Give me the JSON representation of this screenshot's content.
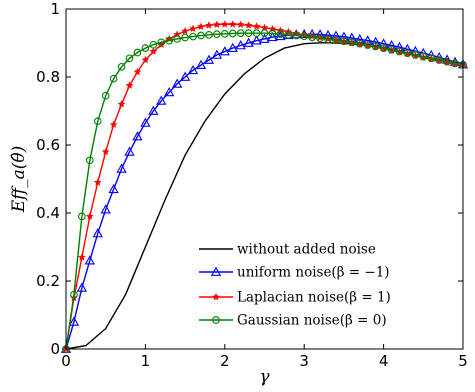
{
  "chart_data": {
    "type": "line",
    "title": "",
    "xlabel": "γ",
    "ylabel": "Eff_a(θ̂)",
    "xlim": [
      0,
      5
    ],
    "ylim": [
      0,
      1
    ],
    "x_ticks": [
      "0",
      "1",
      "2",
      "3",
      "4",
      "5"
    ],
    "y_ticks": [
      "0",
      "0.2",
      "0.4",
      "0.6",
      "0.8",
      "1"
    ],
    "grid": false,
    "legend_position": "bottom-right",
    "series": [
      {
        "name": "without added noise",
        "color": "#000000",
        "marker": "none",
        "x": [
          0,
          0.25,
          0.5,
          0.75,
          1.0,
          1.25,
          1.5,
          1.75,
          2.0,
          2.25,
          2.5,
          2.75,
          3.0,
          3.25,
          3.5,
          3.75,
          4.0,
          4.25,
          4.5,
          4.75,
          5.0
        ],
        "y": [
          0,
          0.01,
          0.06,
          0.16,
          0.3,
          0.44,
          0.57,
          0.67,
          0.75,
          0.81,
          0.855,
          0.885,
          0.898,
          0.901,
          0.899,
          0.894,
          0.885,
          0.873,
          0.86,
          0.85,
          0.84
        ]
      },
      {
        "name": "uniform noise(β = −1)",
        "color": "#0000ff",
        "marker": "triangle",
        "x": [
          0,
          0.1,
          0.2,
          0.3,
          0.4,
          0.5,
          0.6,
          0.7,
          0.8,
          0.9,
          1.0,
          1.1,
          1.2,
          1.3,
          1.4,
          1.5,
          1.6,
          1.7,
          1.8,
          1.9,
          2.0,
          2.1,
          2.2,
          2.3,
          2.4,
          2.5,
          2.6,
          2.7,
          2.8,
          2.9,
          3.0,
          3.1,
          3.2,
          3.3,
          3.4,
          3.5,
          3.6,
          3.7,
          3.8,
          3.9,
          4.0,
          4.1,
          4.2,
          4.3,
          4.4,
          4.5,
          4.6,
          4.7,
          4.8,
          4.9,
          5.0
        ],
        "y": [
          0,
          0.08,
          0.18,
          0.26,
          0.34,
          0.41,
          0.47,
          0.53,
          0.58,
          0.625,
          0.665,
          0.7,
          0.73,
          0.755,
          0.78,
          0.8,
          0.82,
          0.835,
          0.85,
          0.865,
          0.875,
          0.885,
          0.893,
          0.9,
          0.907,
          0.912,
          0.917,
          0.92,
          0.923,
          0.925,
          0.926,
          0.926,
          0.925,
          0.923,
          0.921,
          0.918,
          0.915,
          0.911,
          0.907,
          0.903,
          0.898,
          0.893,
          0.888,
          0.882,
          0.876,
          0.87,
          0.864,
          0.858,
          0.851,
          0.844,
          0.837
        ]
      },
      {
        "name": "Laplacian noise(β = 1)",
        "color": "#ff0000",
        "marker": "star",
        "x": [
          0,
          0.1,
          0.2,
          0.3,
          0.4,
          0.5,
          0.6,
          0.7,
          0.8,
          0.9,
          1.0,
          1.1,
          1.2,
          1.3,
          1.4,
          1.5,
          1.6,
          1.7,
          1.8,
          1.9,
          2.0,
          2.1,
          2.2,
          2.3,
          2.4,
          2.5,
          2.6,
          2.7,
          2.8,
          2.9,
          3.0,
          3.1,
          3.2,
          3.3,
          3.4,
          3.5,
          3.6,
          3.7,
          3.8,
          3.9,
          4.0,
          4.1,
          4.2,
          4.3,
          4.4,
          4.5,
          4.6,
          4.7,
          4.8,
          4.9,
          5.0
        ],
        "y": [
          0,
          0.15,
          0.27,
          0.39,
          0.49,
          0.58,
          0.66,
          0.72,
          0.775,
          0.815,
          0.85,
          0.875,
          0.895,
          0.912,
          0.925,
          0.935,
          0.942,
          0.948,
          0.952,
          0.954,
          0.955,
          0.955,
          0.954,
          0.952,
          0.949,
          0.945,
          0.941,
          0.937,
          0.933,
          0.928,
          0.924,
          0.92,
          0.916,
          0.912,
          0.908,
          0.904,
          0.9,
          0.896,
          0.892,
          0.888,
          0.883,
          0.878,
          0.873,
          0.868,
          0.863,
          0.858,
          0.853,
          0.848,
          0.843,
          0.838,
          0.834
        ]
      },
      {
        "name": "Gaussian noise(β = 0)",
        "color": "#008000",
        "marker": "circle",
        "x": [
          0,
          0.1,
          0.2,
          0.3,
          0.4,
          0.5,
          0.6,
          0.7,
          0.8,
          0.9,
          1.0,
          1.1,
          1.2,
          1.3,
          1.4,
          1.5,
          1.6,
          1.7,
          1.8,
          1.9,
          2.0,
          2.1,
          2.2,
          2.3,
          2.4,
          2.5,
          2.6,
          2.7,
          2.8,
          2.9,
          3.0,
          3.1,
          3.2,
          3.3,
          3.4,
          3.5,
          3.6,
          3.7,
          3.8,
          3.9,
          4.0,
          4.1,
          4.2,
          4.3,
          4.4,
          4.5,
          4.6,
          4.7,
          4.8,
          4.9,
          5.0
        ],
        "y": [
          0,
          0.16,
          0.39,
          0.555,
          0.67,
          0.745,
          0.795,
          0.83,
          0.855,
          0.872,
          0.885,
          0.895,
          0.902,
          0.907,
          0.912,
          0.916,
          0.919,
          0.922,
          0.924,
          0.926,
          0.927,
          0.928,
          0.929,
          0.929,
          0.929,
          0.929,
          0.928,
          0.926,
          0.924,
          0.922,
          0.92,
          0.917,
          0.914,
          0.911,
          0.908,
          0.905,
          0.902,
          0.898,
          0.894,
          0.89,
          0.885,
          0.88,
          0.875,
          0.87,
          0.865,
          0.86,
          0.855,
          0.85,
          0.845,
          0.84,
          0.836
        ]
      }
    ]
  }
}
